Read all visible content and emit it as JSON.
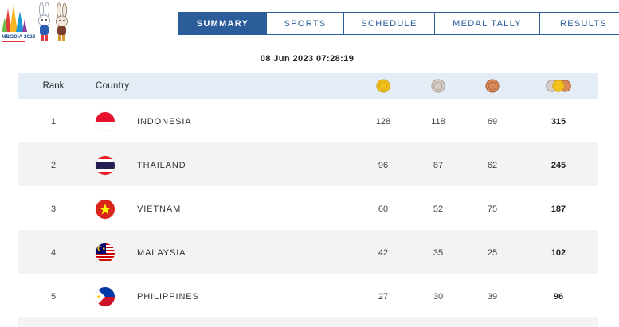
{
  "logo": {
    "text": "CAMBODIA 2023"
  },
  "nav": {
    "tabs": [
      {
        "label": "SUMMARY",
        "active": true
      },
      {
        "label": "SPORTS",
        "active": false
      },
      {
        "label": "SCHEDULE",
        "active": false
      },
      {
        "label": "MEDAL TALLY",
        "active": false
      },
      {
        "label": "RESULTS",
        "active": false
      }
    ]
  },
  "timestamp": "08 Jun 2023  07:28:19",
  "table": {
    "headers": {
      "rank": "Rank",
      "country": "Country"
    },
    "medal_icons": [
      "gold-medal-icon",
      "silver-medal-icon",
      "bronze-medal-icon",
      "all-medals-icon"
    ],
    "rows": [
      {
        "rank": "1",
        "country": "INDONESIA",
        "flag": "indonesia-flag-icon",
        "gold": "128",
        "silver": "118",
        "bronze": "69",
        "total": "315"
      },
      {
        "rank": "2",
        "country": "THAILAND",
        "flag": "thailand-flag-icon",
        "gold": "96",
        "silver": "87",
        "bronze": "62",
        "total": "245"
      },
      {
        "rank": "3",
        "country": "VIETNAM",
        "flag": "vietnam-flag-icon",
        "gold": "60",
        "silver": "52",
        "bronze": "75",
        "total": "187"
      },
      {
        "rank": "4",
        "country": "MALAYSIA",
        "flag": "malaysia-flag-icon",
        "gold": "42",
        "silver": "35",
        "bronze": "25",
        "total": "102"
      },
      {
        "rank": "5",
        "country": "PHILIPPINES",
        "flag": "philippines-flag-icon",
        "gold": "27",
        "silver": "30",
        "bronze": "39",
        "total": "96"
      }
    ]
  },
  "colors": {
    "accent": "#2a5d9a",
    "header_bg": "#e4ecf5",
    "alt_row": "#f3f3f3",
    "gold": "#f2c21b",
    "silver": "#c9c0bb",
    "bronze": "#d98a5a"
  }
}
